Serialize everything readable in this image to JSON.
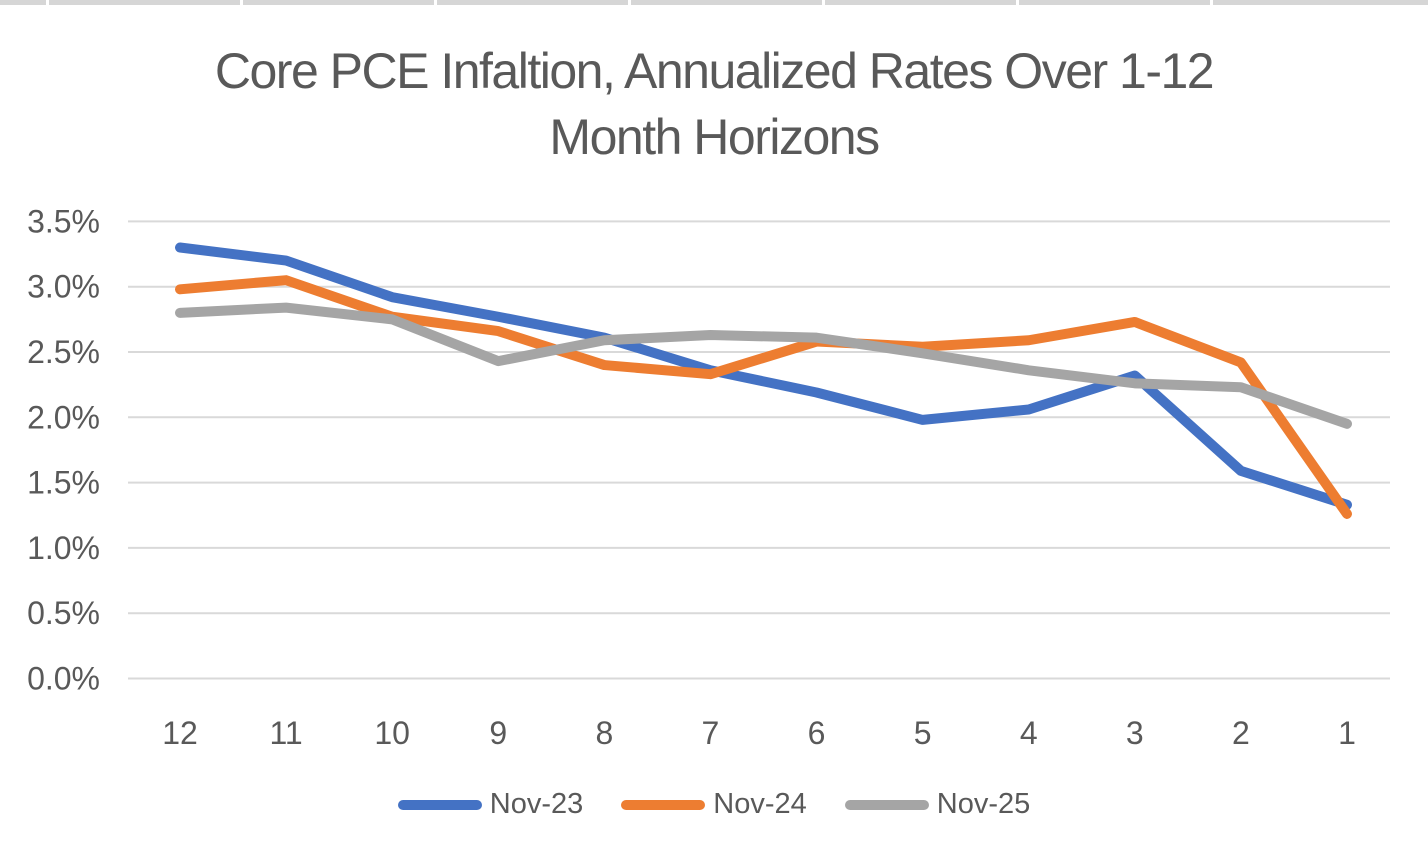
{
  "chart_data": {
    "type": "line",
    "title": "Core PCE Infaltion, Annualized Rates Over 1-12 Month Horizons",
    "title_lines": [
      "Core PCE Infaltion, Annualized Rates Over 1-12",
      "Month Horizons"
    ],
    "categories": [
      "12",
      "11",
      "10",
      "9",
      "8",
      "7",
      "6",
      "5",
      "4",
      "3",
      "2",
      "1"
    ],
    "series": [
      {
        "name": "Nov-23",
        "color": "#4472C4",
        "values": [
          3.3,
          3.2,
          2.92,
          2.77,
          2.61,
          2.36,
          2.19,
          1.98,
          2.06,
          2.32,
          1.59,
          1.33
        ]
      },
      {
        "name": "Nov-24",
        "color": "#ED7D31",
        "values": [
          2.98,
          3.05,
          2.77,
          2.66,
          2.4,
          2.33,
          2.58,
          2.54,
          2.59,
          2.73,
          2.42,
          1.26
        ]
      },
      {
        "name": "Nov-25",
        "color": "#A5A5A5",
        "values": [
          2.8,
          2.84,
          2.75,
          2.43,
          2.59,
          2.63,
          2.61,
          2.49,
          2.36,
          2.26,
          2.23,
          1.95
        ]
      }
    ],
    "y_ticks": [
      0,
      0.5,
      1.0,
      1.5,
      2.0,
      2.5,
      3.0,
      3.5
    ],
    "y_tick_labels": [
      "0.0%",
      "0.5%",
      "1.0%",
      "1.5%",
      "2.0%",
      "2.5%",
      "3.0%",
      "3.5%"
    ],
    "ylim": [
      0,
      3.5
    ],
    "grid": "horizontal",
    "legend_position": "bottom",
    "gridline_color": "#D9D9D9",
    "text_color": "#595959"
  }
}
